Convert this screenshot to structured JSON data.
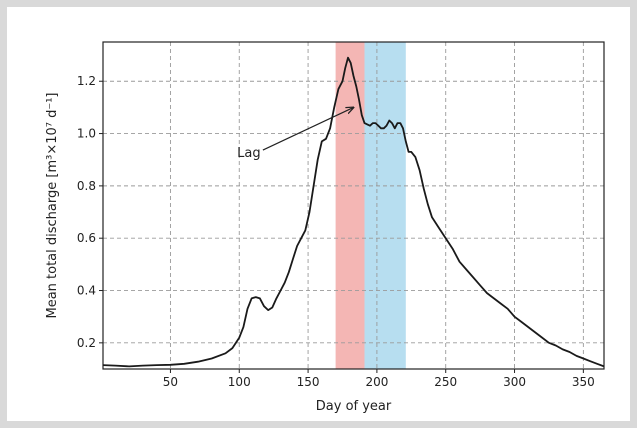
{
  "chart_data": {
    "type": "line",
    "title": "",
    "xlabel": "Day of year",
    "ylabel": "Mean total discharge [m³×10⁷ d⁻¹]",
    "xlim": [
      1,
      365
    ],
    "ylim": [
      0.1,
      1.35
    ],
    "xticks": [
      50,
      100,
      150,
      200,
      250,
      300,
      350
    ],
    "yticks": [
      0.2,
      0.4,
      0.6,
      0.8,
      1.0,
      1.2
    ],
    "ytick_labels": [
      "0.2",
      "0.4",
      "0.6",
      "0.8",
      "1.0",
      "1.2"
    ],
    "grid": true,
    "line_color": "#1a1a1a",
    "shaded_regions": [
      {
        "x": [
          170,
          191
        ],
        "color": "#f4b6b4"
      },
      {
        "x": [
          191,
          221
        ],
        "color": "#b7def0"
      }
    ],
    "annotations": [
      {
        "text": "Lag",
        "x": 107,
        "y": 0.91,
        "arrow_to": [
          183,
          1.1
        ]
      }
    ],
    "series": [
      {
        "x": [
          1,
          10,
          20,
          30,
          40,
          50,
          60,
          70,
          80,
          90,
          95,
          100,
          103,
          106,
          109,
          112,
          115,
          118,
          121,
          124,
          127,
          130,
          133,
          136,
          139,
          142,
          145,
          148,
          151,
          154,
          157,
          160,
          163,
          166,
          169,
          172,
          175,
          177,
          179,
          181,
          183,
          185,
          187,
          189,
          191,
          193,
          195,
          197,
          199,
          201,
          203,
          205,
          207,
          209,
          211,
          213,
          215,
          217,
          219,
          221,
          223,
          225,
          228,
          231,
          234,
          237,
          240,
          245,
          250,
          255,
          260,
          265,
          270,
          275,
          280,
          285,
          290,
          295,
          300,
          305,
          310,
          315,
          320,
          325,
          330,
          335,
          340,
          345,
          350,
          355,
          360,
          365
        ],
        "y": [
          0.115,
          0.113,
          0.11,
          0.113,
          0.115,
          0.116,
          0.12,
          0.128,
          0.14,
          0.16,
          0.18,
          0.22,
          0.26,
          0.33,
          0.37,
          0.375,
          0.37,
          0.34,
          0.325,
          0.335,
          0.37,
          0.4,
          0.43,
          0.47,
          0.52,
          0.57,
          0.6,
          0.63,
          0.7,
          0.8,
          0.9,
          0.97,
          0.98,
          1.02,
          1.1,
          1.17,
          1.2,
          1.25,
          1.29,
          1.27,
          1.22,
          1.18,
          1.13,
          1.07,
          1.04,
          1.035,
          1.03,
          1.04,
          1.04,
          1.03,
          1.02,
          1.02,
          1.03,
          1.05,
          1.04,
          1.02,
          1.04,
          1.04,
          1.02,
          0.97,
          0.93,
          0.93,
          0.91,
          0.86,
          0.79,
          0.73,
          0.68,
          0.64,
          0.6,
          0.56,
          0.51,
          0.48,
          0.45,
          0.42,
          0.39,
          0.37,
          0.35,
          0.33,
          0.3,
          0.28,
          0.26,
          0.24,
          0.22,
          0.2,
          0.19,
          0.175,
          0.165,
          0.15,
          0.14,
          0.13,
          0.12,
          0.11
        ]
      }
    ]
  }
}
